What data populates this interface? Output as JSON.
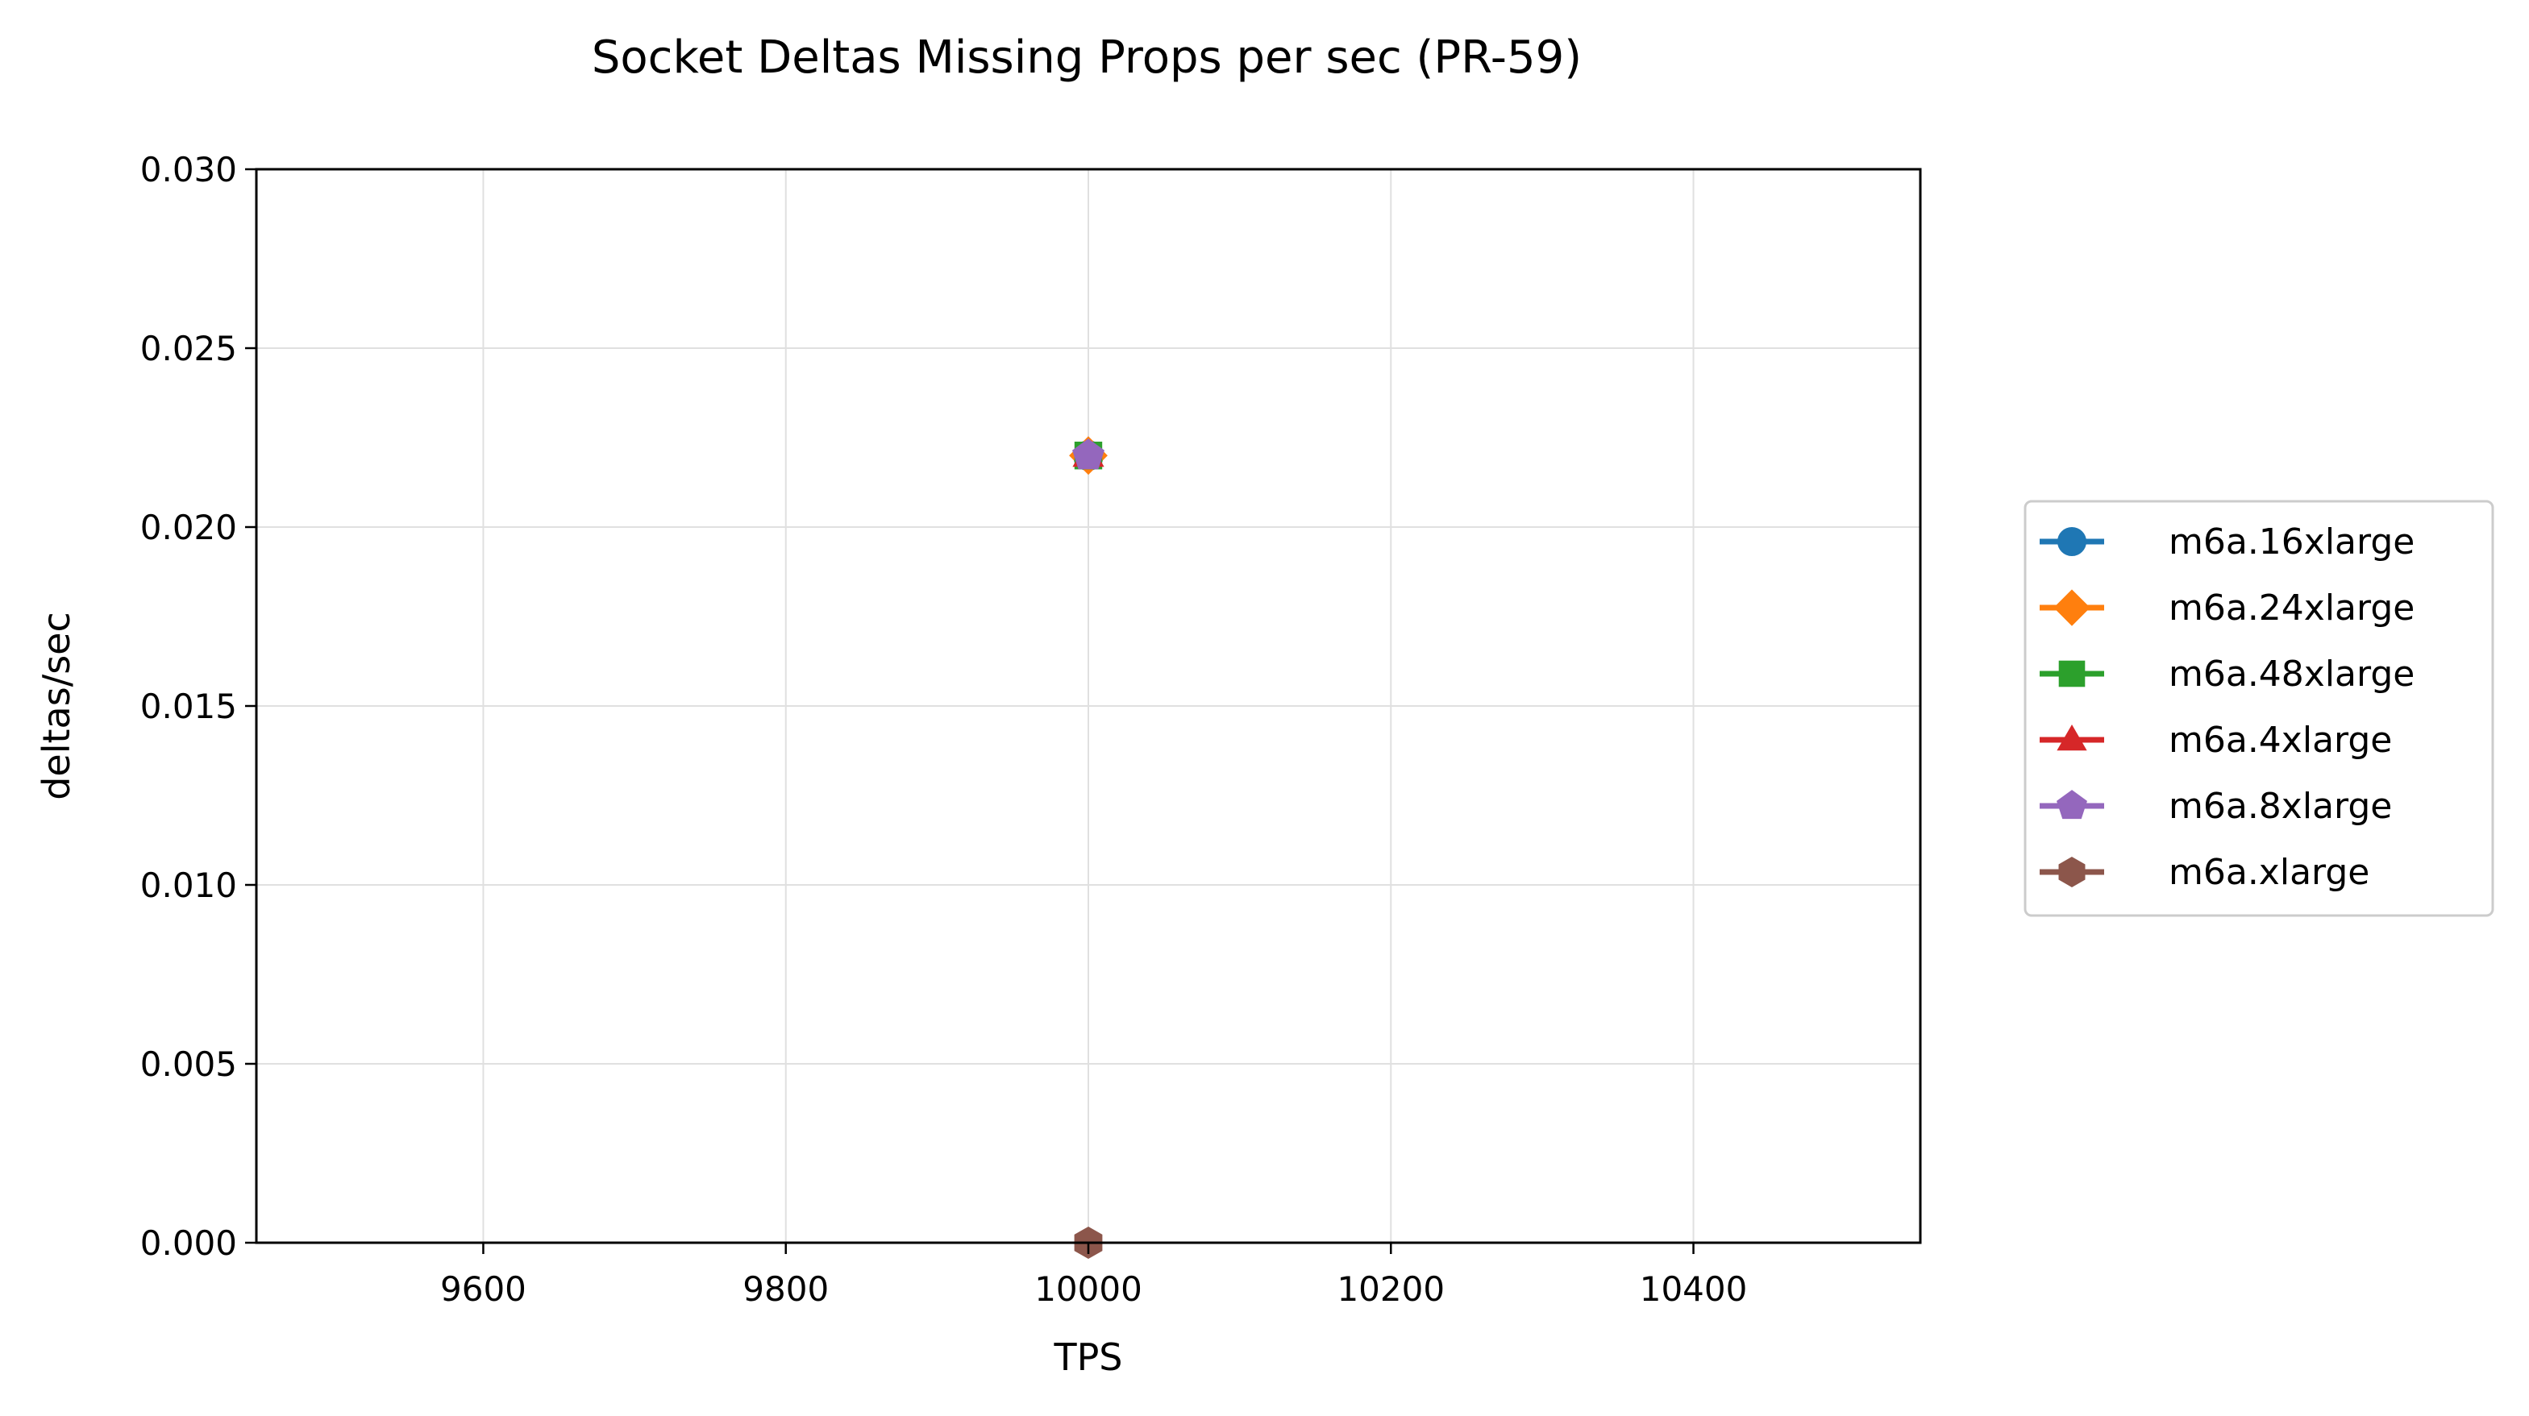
{
  "chart_data": {
    "type": "line",
    "title": "Socket Deltas Missing Props per sec (PR-59)",
    "xlabel": "TPS",
    "ylabel": "deltas/sec",
    "xlim": [
      9450,
      10550
    ],
    "ylim": [
      0,
      0.03
    ],
    "xticks": [
      9600,
      9800,
      10000,
      10200,
      10400
    ],
    "yticks": [
      0,
      0.005,
      0.01,
      0.015,
      0.02,
      0.025,
      0.03
    ],
    "xtick_labels": [
      "9600",
      "9800",
      "10000",
      "10200",
      "10400"
    ],
    "ytick_labels": [
      "0.000",
      "0.005",
      "0.010",
      "0.015",
      "0.020",
      "0.025",
      "0.030"
    ],
    "grid": true,
    "legend_position": "outside-right",
    "series": [
      {
        "name": "m6a.16xlarge",
        "color": "#1f77b4",
        "marker": "circle",
        "x": [
          10000
        ],
        "y": [
          0.022
        ]
      },
      {
        "name": "m6a.24xlarge",
        "color": "#ff7f0e",
        "marker": "diamond",
        "x": [
          10000
        ],
        "y": [
          0.022
        ]
      },
      {
        "name": "m6a.48xlarge",
        "color": "#2ca02c",
        "marker": "square",
        "x": [
          10000
        ],
        "y": [
          0.022
        ]
      },
      {
        "name": "m6a.4xlarge",
        "color": "#d62728",
        "marker": "triangle",
        "x": [
          10000
        ],
        "y": [
          0.022
        ]
      },
      {
        "name": "m6a.8xlarge",
        "color": "#9467bd",
        "marker": "pentagon",
        "x": [
          10000
        ],
        "y": [
          0.022
        ]
      },
      {
        "name": "m6a.xlarge",
        "color": "#8c564b",
        "marker": "hexagon",
        "x": [
          10000
        ],
        "y": [
          0
        ]
      }
    ]
  }
}
